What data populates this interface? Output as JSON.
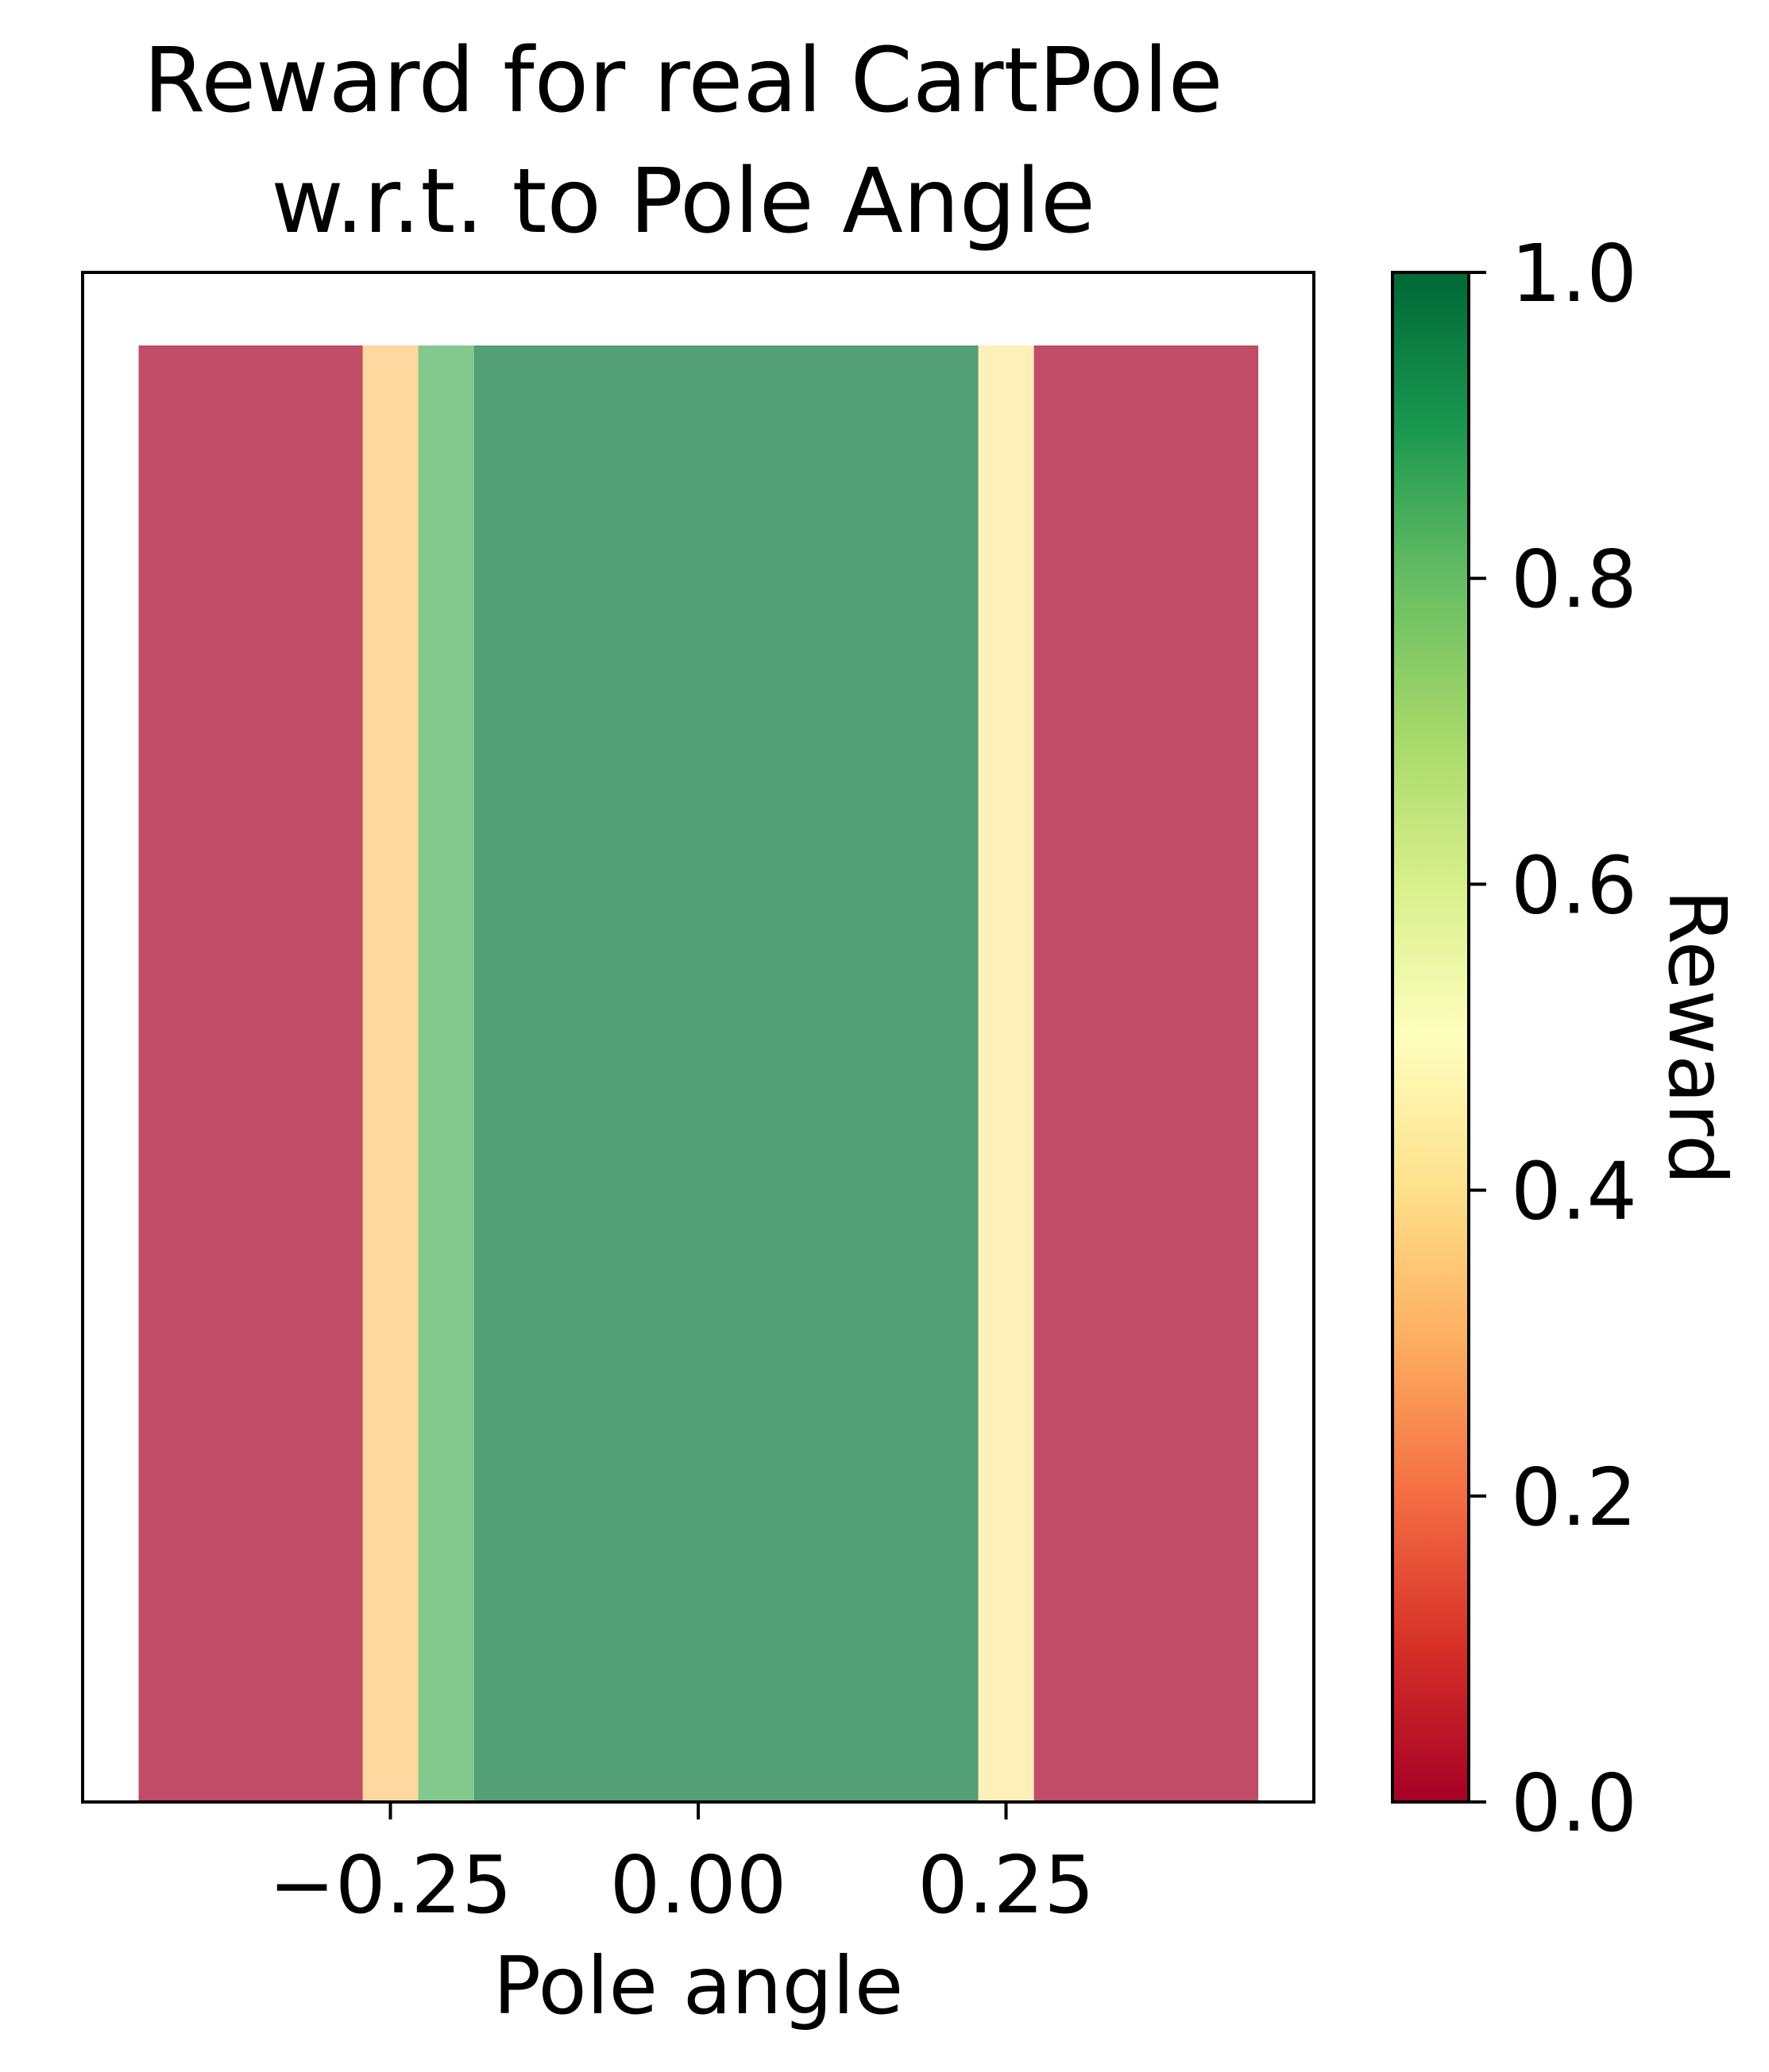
{
  "chart_data": {
    "type": "heatmap",
    "title_lines": [
      "Reward for real CartPole",
      "w.r.t. to Pole Angle"
    ],
    "xlabel": "Pole angle",
    "xlim": [
      -0.5,
      0.5
    ],
    "x_ticks": [
      -0.25,
      0.0,
      0.25
    ],
    "x_tick_labels": [
      "−0.25",
      "0.00",
      "0.25"
    ],
    "y_ticks_shown": false,
    "colormap": "RdYlGn",
    "cell_alpha": 0.7,
    "cells": [
      {
        "x0": -0.4545,
        "x1": -0.2727,
        "value": 0.0
      },
      {
        "x0": -0.2727,
        "x1": -0.2273,
        "value": 0.35
      },
      {
        "x0": -0.2273,
        "x1": -0.1818,
        "value": 0.83
      },
      {
        "x0": -0.1818,
        "x1": 0.2273,
        "value": 0.97
      },
      {
        "x0": 0.2273,
        "x1": 0.2727,
        "value": 0.43
      },
      {
        "x0": 0.2727,
        "x1": 0.4545,
        "value": 0.0
      }
    ],
    "colorbar": {
      "label": "Reward",
      "lim": [
        0.0,
        1.0
      ],
      "ticks": [
        0.0,
        0.2,
        0.4,
        0.6,
        0.8,
        1.0
      ],
      "tick_labels": [
        "0.0",
        "0.2",
        "0.4",
        "0.6",
        "0.8",
        "1.0"
      ]
    }
  }
}
